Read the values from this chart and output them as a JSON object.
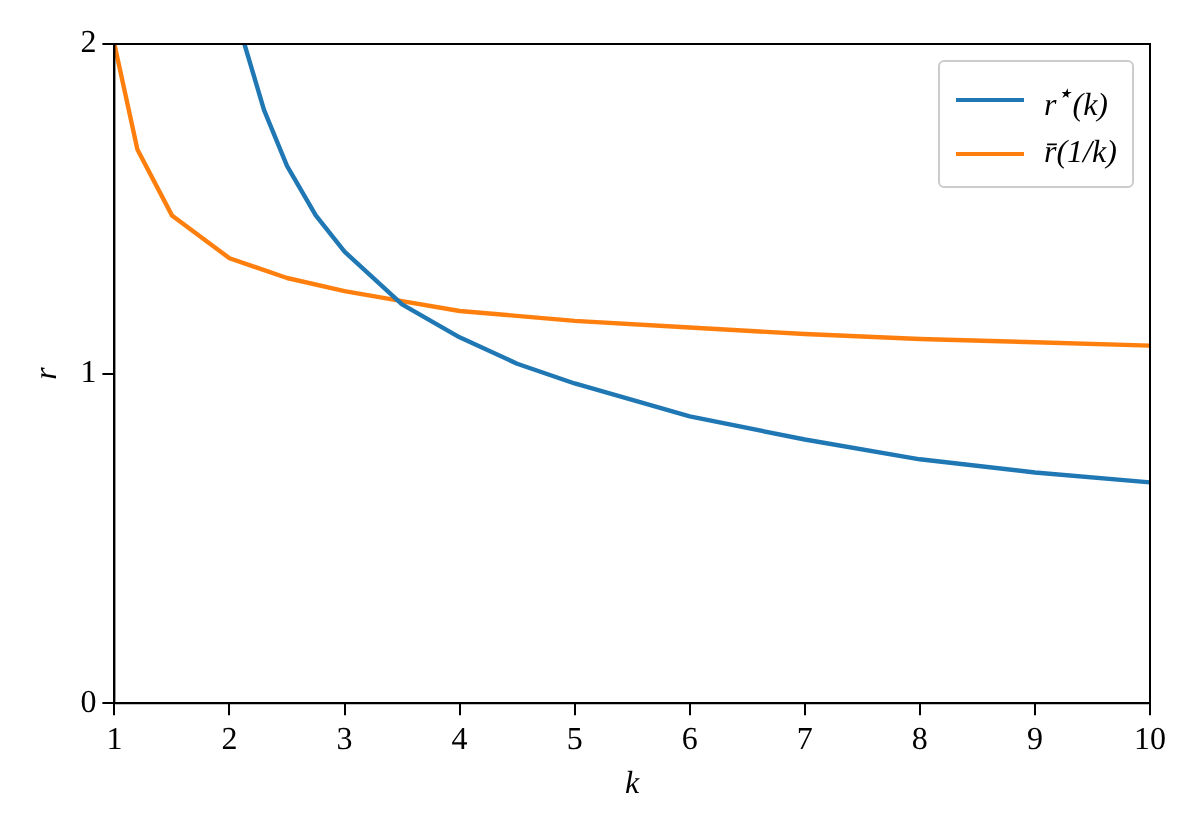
{
  "chart_data": {
    "type": "line",
    "xlabel": "k",
    "ylabel": "r",
    "xlim": [
      1,
      10
    ],
    "ylim": [
      0,
      2
    ],
    "xticks": [
      1,
      2,
      3,
      4,
      5,
      6,
      7,
      8,
      9,
      10
    ],
    "yticks": [
      0,
      1,
      2
    ],
    "grid": false,
    "legend": "top right",
    "marker": "none",
    "line_style": "solid",
    "series": [
      {
        "name": "r$^{⋆}$(k)",
        "color": "#1f77b4",
        "x": [
          2.13,
          2.3,
          2.5,
          2.75,
          3,
          3.5,
          4,
          4.5,
          5,
          6,
          7,
          8,
          9,
          10
        ],
        "values": [
          2.0,
          1.8,
          1.63,
          1.48,
          1.37,
          1.21,
          1.11,
          1.03,
          0.97,
          0.87,
          0.8,
          0.74,
          0.7,
          0.67
        ]
      },
      {
        "name": "r̄(1/k)",
        "color": "#ff7f0e",
        "x": [
          1,
          1.2,
          1.5,
          2,
          2.5,
          3,
          3.5,
          4,
          5,
          6,
          7,
          8,
          9,
          10
        ],
        "values": [
          2.0,
          1.68,
          1.48,
          1.35,
          1.29,
          1.25,
          1.22,
          1.19,
          1.16,
          1.14,
          1.12,
          1.105,
          1.095,
          1.085
        ]
      }
    ]
  }
}
